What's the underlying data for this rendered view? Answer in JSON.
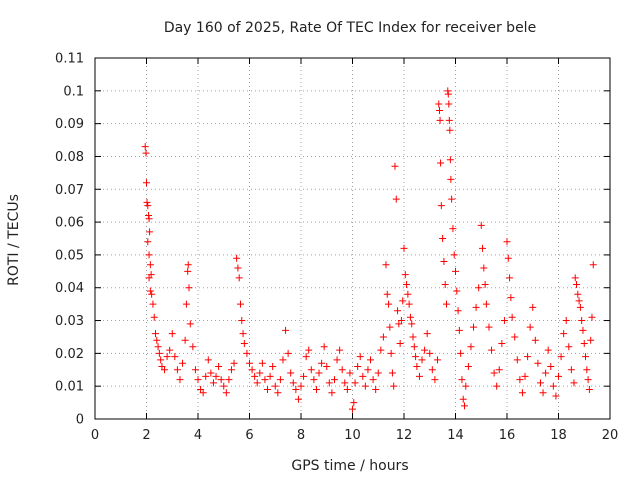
{
  "chart_data": {
    "type": "scatter",
    "title": "Day 160 of 2025, Rate Of TEC Index for receiver bele",
    "xlabel": "GPS time / hours",
    "ylabel": "ROTI / TECUs",
    "xlim": [
      0,
      20
    ],
    "ylim": [
      0,
      0.11
    ],
    "xticks": [
      0,
      2,
      4,
      6,
      8,
      10,
      12,
      14,
      16,
      18,
      20
    ],
    "yticks": [
      0,
      0.01,
      0.02,
      0.03,
      0.04,
      0.05,
      0.06,
      0.07,
      0.08,
      0.09,
      0.1,
      0.11
    ],
    "xtick_labels": [
      "0",
      "2",
      "4",
      "6",
      "8",
      "10",
      "12",
      "14",
      "16",
      "18",
      "20"
    ],
    "ytick_labels": [
      "0",
      "0.01",
      "0.02",
      "0.03",
      "0.04",
      "0.05",
      "0.06",
      "0.07",
      "0.08",
      "0.09",
      "0.1",
      "0.11"
    ],
    "grid": true,
    "marker": "plus",
    "marker_color": "#ff0000",
    "series": [
      {
        "name": "ROTI",
        "points": [
          [
            1.95,
            0.083
          ],
          [
            1.98,
            0.081
          ],
          [
            2.0,
            0.072
          ],
          [
            2.02,
            0.066
          ],
          [
            2.05,
            0.065
          ],
          [
            2.08,
            0.062
          ],
          [
            2.1,
            0.061
          ],
          [
            2.12,
            0.057
          ],
          [
            2.05,
            0.054
          ],
          [
            2.1,
            0.05
          ],
          [
            2.15,
            0.047
          ],
          [
            2.18,
            0.044
          ],
          [
            2.1,
            0.043
          ],
          [
            2.15,
            0.039
          ],
          [
            2.2,
            0.038
          ],
          [
            2.25,
            0.035
          ],
          [
            2.3,
            0.031
          ],
          [
            2.35,
            0.026
          ],
          [
            2.4,
            0.024
          ],
          [
            2.45,
            0.022
          ],
          [
            2.5,
            0.02
          ],
          [
            2.55,
            0.018
          ],
          [
            2.6,
            0.016
          ],
          [
            2.7,
            0.015
          ],
          [
            2.8,
            0.019
          ],
          [
            2.9,
            0.021
          ],
          [
            3.0,
            0.026
          ],
          [
            3.1,
            0.019
          ],
          [
            3.2,
            0.015
          ],
          [
            3.3,
            0.012
          ],
          [
            3.4,
            0.017
          ],
          [
            3.5,
            0.024
          ],
          [
            3.55,
            0.035
          ],
          [
            3.6,
            0.045
          ],
          [
            3.62,
            0.047
          ],
          [
            3.65,
            0.04
          ],
          [
            3.7,
            0.029
          ],
          [
            3.8,
            0.022
          ],
          [
            3.9,
            0.015
          ],
          [
            4.0,
            0.012
          ],
          [
            4.1,
            0.009
          ],
          [
            4.2,
            0.008
          ],
          [
            4.3,
            0.013
          ],
          [
            4.4,
            0.018
          ],
          [
            4.5,
            0.014
          ],
          [
            4.6,
            0.011
          ],
          [
            4.7,
            0.013
          ],
          [
            4.8,
            0.016
          ],
          [
            4.9,
            0.012
          ],
          [
            5.0,
            0.01
          ],
          [
            5.1,
            0.008
          ],
          [
            5.2,
            0.012
          ],
          [
            5.3,
            0.015
          ],
          [
            5.4,
            0.017
          ],
          [
            5.5,
            0.049
          ],
          [
            5.55,
            0.046
          ],
          [
            5.6,
            0.043
          ],
          [
            5.65,
            0.035
          ],
          [
            5.7,
            0.03
          ],
          [
            5.75,
            0.026
          ],
          [
            5.8,
            0.023
          ],
          [
            5.9,
            0.02
          ],
          [
            6.0,
            0.017
          ],
          [
            6.1,
            0.015
          ],
          [
            6.2,
            0.013
          ],
          [
            6.3,
            0.011
          ],
          [
            6.4,
            0.014
          ],
          [
            6.5,
            0.017
          ],
          [
            6.6,
            0.012
          ],
          [
            6.7,
            0.009
          ],
          [
            6.8,
            0.013
          ],
          [
            6.9,
            0.016
          ],
          [
            7.0,
            0.01
          ],
          [
            7.1,
            0.008
          ],
          [
            7.2,
            0.012
          ],
          [
            7.3,
            0.018
          ],
          [
            7.4,
            0.027
          ],
          [
            7.5,
            0.02
          ],
          [
            7.6,
            0.014
          ],
          [
            7.7,
            0.011
          ],
          [
            7.8,
            0.009
          ],
          [
            7.9,
            0.006
          ],
          [
            8.0,
            0.01
          ],
          [
            8.1,
            0.013
          ],
          [
            8.2,
            0.019
          ],
          [
            8.3,
            0.021
          ],
          [
            8.4,
            0.015
          ],
          [
            8.5,
            0.012
          ],
          [
            8.6,
            0.009
          ],
          [
            8.7,
            0.014
          ],
          [
            8.8,
            0.017
          ],
          [
            8.9,
            0.022
          ],
          [
            9.0,
            0.016
          ],
          [
            9.1,
            0.011
          ],
          [
            9.2,
            0.008
          ],
          [
            9.3,
            0.012
          ],
          [
            9.4,
            0.018
          ],
          [
            9.5,
            0.021
          ],
          [
            9.6,
            0.015
          ],
          [
            9.7,
            0.011
          ],
          [
            9.8,
            0.009
          ],
          [
            9.9,
            0.014
          ],
          [
            10.0,
            0.003
          ],
          [
            10.05,
            0.005
          ],
          [
            10.1,
            0.011
          ],
          [
            10.2,
            0.016
          ],
          [
            10.3,
            0.019
          ],
          [
            10.4,
            0.013
          ],
          [
            10.5,
            0.01
          ],
          [
            10.6,
            0.015
          ],
          [
            10.7,
            0.018
          ],
          [
            10.8,
            0.012
          ],
          [
            10.9,
            0.009
          ],
          [
            11.0,
            0.014
          ],
          [
            11.1,
            0.021
          ],
          [
            11.2,
            0.025
          ],
          [
            11.3,
            0.047
          ],
          [
            11.35,
            0.038
          ],
          [
            11.4,
            0.035
          ],
          [
            11.45,
            0.028
          ],
          [
            11.5,
            0.02
          ],
          [
            11.55,
            0.014
          ],
          [
            11.6,
            0.01
          ],
          [
            11.65,
            0.077
          ],
          [
            11.7,
            0.067
          ],
          [
            11.75,
            0.033
          ],
          [
            11.8,
            0.029
          ],
          [
            11.85,
            0.023
          ],
          [
            11.9,
            0.03
          ],
          [
            11.95,
            0.036
          ],
          [
            12.0,
            0.052
          ],
          [
            12.05,
            0.044
          ],
          [
            12.1,
            0.041
          ],
          [
            12.15,
            0.038
          ],
          [
            12.2,
            0.035
          ],
          [
            12.25,
            0.031
          ],
          [
            12.3,
            0.029
          ],
          [
            12.35,
            0.025
          ],
          [
            12.4,
            0.022
          ],
          [
            12.45,
            0.019
          ],
          [
            12.5,
            0.016
          ],
          [
            12.6,
            0.013
          ],
          [
            12.7,
            0.018
          ],
          [
            12.8,
            0.021
          ],
          [
            12.9,
            0.026
          ],
          [
            13.0,
            0.02
          ],
          [
            13.1,
            0.015
          ],
          [
            13.2,
            0.012
          ],
          [
            13.3,
            0.018
          ],
          [
            13.35,
            0.096
          ],
          [
            13.38,
            0.094
          ],
          [
            13.4,
            0.091
          ],
          [
            13.42,
            0.078
          ],
          [
            13.45,
            0.065
          ],
          [
            13.5,
            0.055
          ],
          [
            13.55,
            0.048
          ],
          [
            13.6,
            0.041
          ],
          [
            13.65,
            0.035
          ],
          [
            13.7,
            0.1
          ],
          [
            13.72,
            0.099
          ],
          [
            13.74,
            0.096
          ],
          [
            13.76,
            0.091
          ],
          [
            13.78,
            0.088
          ],
          [
            13.8,
            0.079
          ],
          [
            13.82,
            0.073
          ],
          [
            13.85,
            0.067
          ],
          [
            13.9,
            0.058
          ],
          [
            13.95,
            0.05
          ],
          [
            14.0,
            0.045
          ],
          [
            14.05,
            0.039
          ],
          [
            14.1,
            0.033
          ],
          [
            14.15,
            0.027
          ],
          [
            14.2,
            0.02
          ],
          [
            14.25,
            0.012
          ],
          [
            14.3,
            0.006
          ],
          [
            14.35,
            0.004
          ],
          [
            14.4,
            0.01
          ],
          [
            14.5,
            0.016
          ],
          [
            14.6,
            0.022
          ],
          [
            14.7,
            0.028
          ],
          [
            14.8,
            0.034
          ],
          [
            14.9,
            0.04
          ],
          [
            15.0,
            0.059
          ],
          [
            15.05,
            0.052
          ],
          [
            15.1,
            0.046
          ],
          [
            15.15,
            0.041
          ],
          [
            15.2,
            0.035
          ],
          [
            15.3,
            0.028
          ],
          [
            15.4,
            0.021
          ],
          [
            15.5,
            0.014
          ],
          [
            15.6,
            0.01
          ],
          [
            15.7,
            0.015
          ],
          [
            15.8,
            0.023
          ],
          [
            15.9,
            0.03
          ],
          [
            16.0,
            0.054
          ],
          [
            16.05,
            0.049
          ],
          [
            16.1,
            0.043
          ],
          [
            16.15,
            0.037
          ],
          [
            16.2,
            0.031
          ],
          [
            16.3,
            0.025
          ],
          [
            16.4,
            0.018
          ],
          [
            16.5,
            0.012
          ],
          [
            16.6,
            0.008
          ],
          [
            16.7,
            0.013
          ],
          [
            16.8,
            0.019
          ],
          [
            16.9,
            0.028
          ],
          [
            17.0,
            0.034
          ],
          [
            17.1,
            0.024
          ],
          [
            17.2,
            0.017
          ],
          [
            17.3,
            0.011
          ],
          [
            17.4,
            0.008
          ],
          [
            17.5,
            0.014
          ],
          [
            17.6,
            0.021
          ],
          [
            17.7,
            0.016
          ],
          [
            17.8,
            0.01
          ],
          [
            17.9,
            0.007
          ],
          [
            18.0,
            0.013
          ],
          [
            18.1,
            0.019
          ],
          [
            18.2,
            0.026
          ],
          [
            18.3,
            0.03
          ],
          [
            18.4,
            0.022
          ],
          [
            18.5,
            0.015
          ],
          [
            18.6,
            0.011
          ],
          [
            18.65,
            0.043
          ],
          [
            18.7,
            0.041
          ],
          [
            18.75,
            0.038
          ],
          [
            18.8,
            0.036
          ],
          [
            18.85,
            0.034
          ],
          [
            18.9,
            0.03
          ],
          [
            18.95,
            0.027
          ],
          [
            19.0,
            0.023
          ],
          [
            19.05,
            0.019
          ],
          [
            19.1,
            0.015
          ],
          [
            19.15,
            0.012
          ],
          [
            19.2,
            0.009
          ],
          [
            19.25,
            0.024
          ],
          [
            19.3,
            0.031
          ],
          [
            19.35,
            0.047
          ]
        ]
      }
    ]
  }
}
